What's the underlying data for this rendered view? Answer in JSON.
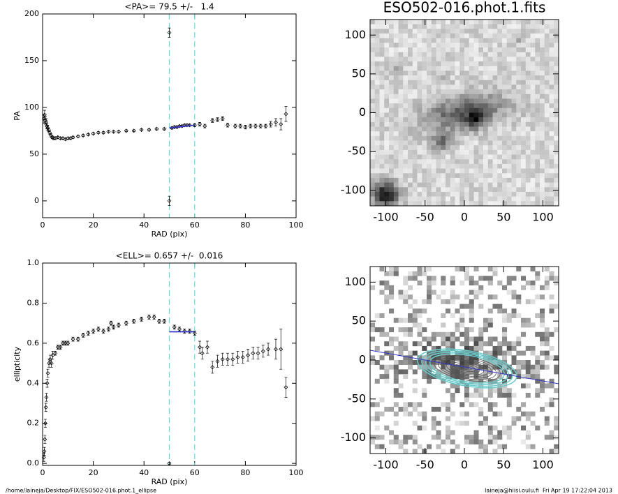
{
  "chart_data": [
    {
      "type": "scatter",
      "title": "<PA>= 79.5 +/-   1.4",
      "x_label": "RAD (pix)",
      "y_label": "PA",
      "xlim": [
        0,
        100
      ],
      "xticks": [
        0,
        20,
        40,
        60,
        80,
        100
      ],
      "ylim": [
        -18,
        200
      ],
      "yticks": [
        0,
        50,
        100,
        150,
        200
      ],
      "vlines": [
        50,
        60
      ],
      "vline_color": "#66dddd",
      "fit": {
        "color": "#3333cc",
        "x": [
          50,
          60
        ],
        "y": [
          78,
          81
        ]
      },
      "series": [
        {
          "color": "#000000",
          "x": [
            0.5,
            0.8,
            1.1,
            1.4,
            1.7,
            2,
            2.4,
            2.8,
            3.3,
            3.8,
            4.4,
            5,
            6,
            7,
            8,
            9,
            10,
            11,
            12,
            14,
            16,
            18,
            20,
            22,
            24,
            26,
            28,
            30,
            33,
            36,
            39,
            42,
            45,
            48,
            50,
            50,
            51,
            52,
            53,
            54,
            55,
            56,
            57,
            58,
            60,
            62,
            64,
            67,
            69,
            71,
            73,
            76,
            78,
            80,
            82,
            84,
            86,
            88,
            90,
            92,
            94,
            96
          ],
          "values": [
            88,
            92,
            86,
            84,
            80,
            78,
            76,
            73,
            70,
            68,
            67,
            67,
            68,
            67,
            67,
            66,
            67,
            67,
            68,
            69,
            70,
            71,
            72,
            73,
            73,
            74,
            74,
            74,
            75,
            75,
            76,
            76,
            77,
            77,
            180,
            0,
            78,
            79,
            79,
            80,
            80,
            81,
            81,
            81,
            81,
            82,
            80,
            86,
            87,
            88,
            81,
            80,
            80,
            79,
            80,
            80,
            80,
            80,
            82,
            84,
            82,
            93
          ],
          "errors": [
            5,
            5,
            4,
            4,
            3,
            3,
            2,
            2,
            2,
            1.5,
            1.5,
            1.5,
            1,
            1,
            1,
            1,
            1,
            1,
            1,
            1,
            1,
            1,
            1,
            1,
            1,
            1,
            1,
            1,
            1,
            1,
            1,
            1,
            1,
            1,
            5,
            5,
            1,
            1,
            1,
            1,
            1,
            1,
            1,
            1,
            1.5,
            2,
            2,
            2,
            2,
            2,
            2,
            2,
            2,
            2,
            2,
            2,
            2,
            2,
            3,
            4,
            6,
            8
          ]
        }
      ]
    },
    {
      "type": "scatter",
      "title": "<ELL>= 0.657 +/-  0.016",
      "x_label": "RAD (pix)",
      "y_label": "ellipticity",
      "xlim": [
        0,
        100
      ],
      "xticks": [
        0,
        20,
        40,
        60,
        80,
        100
      ],
      "ylim": [
        -0.01,
        1.0
      ],
      "yticks": [
        {
          "value": 0,
          "label": "0.0"
        },
        0.2,
        0.4,
        0.6,
        0.8,
        {
          "value": 1,
          "label": "1.0"
        }
      ],
      "vlines": [
        50,
        60
      ],
      "vline_color": "#66dddd",
      "fit": {
        "color": "#3333cc",
        "x": [
          50,
          60
        ],
        "y": [
          0.657,
          0.657
        ]
      },
      "series": [
        {
          "color": "#000000",
          "x": [
            0.5,
            0.7,
            0.9,
            1.1,
            1.3,
            1.5,
            1.8,
            2.1,
            2.5,
            3,
            3.5,
            4,
            5,
            6,
            7,
            8,
            9,
            10,
            12,
            14,
            16,
            18,
            20,
            22,
            24,
            26,
            27,
            28,
            30,
            33,
            36,
            39,
            42,
            44,
            46,
            48,
            50,
            52,
            54,
            56,
            58,
            60,
            62,
            63,
            65,
            67,
            69,
            71,
            73,
            75,
            77,
            79,
            81,
            83,
            85,
            87,
            89,
            92,
            94,
            96
          ],
          "values": [
            0.03,
            0.06,
            0.12,
            0.2,
            0.28,
            0.33,
            0.4,
            0.45,
            0.5,
            0.52,
            0.5,
            0.54,
            0.55,
            0.58,
            0.58,
            0.6,
            0.6,
            0.6,
            0.62,
            0.62,
            0.64,
            0.65,
            0.66,
            0.67,
            0.66,
            0.67,
            0.7,
            0.68,
            0.69,
            0.7,
            0.71,
            0.72,
            0.73,
            0.73,
            0.71,
            0.71,
            0,
            0.68,
            0.67,
            0.66,
            0.66,
            0.65,
            0.58,
            0.55,
            0.58,
            0.48,
            0.51,
            0.52,
            0.52,
            0.52,
            0.53,
            0.53,
            0.54,
            0.55,
            0.55,
            0.56,
            0.57,
            0.57,
            0.57,
            0.38
          ],
          "errors": [
            0.02,
            0.02,
            0.02,
            0.02,
            0.02,
            0.02,
            0.02,
            0.02,
            0.02,
            0.02,
            0.02,
            0.02,
            0.01,
            0.01,
            0.01,
            0.01,
            0.01,
            0.01,
            0.01,
            0.01,
            0.01,
            0.01,
            0.01,
            0.01,
            0.01,
            0.01,
            0.01,
            0.01,
            0.01,
            0.01,
            0.01,
            0.01,
            0.01,
            0.01,
            0.01,
            0.01,
            0.005,
            0.01,
            0.01,
            0.01,
            0.01,
            0.01,
            0.03,
            0.03,
            0.03,
            0.03,
            0.03,
            0.03,
            0.03,
            0.03,
            0.03,
            0.03,
            0.03,
            0.03,
            0.03,
            0.03,
            0.03,
            0.05,
            0.1,
            0.05
          ]
        }
      ]
    },
    {
      "type": "image",
      "title": "ESO502-016.phot.1.fits",
      "xlim": [
        -120,
        120
      ],
      "xticks": [
        -100,
        -50,
        0,
        50,
        100
      ],
      "ylim": [
        -120,
        120
      ],
      "yticks": [
        -100,
        -50,
        0,
        50,
        100
      ]
    },
    {
      "type": "image_model",
      "xlim": [
        -120,
        120
      ],
      "xticks": [
        -100,
        -50,
        0,
        50,
        100
      ],
      "ylim": [
        -120,
        120
      ],
      "yticks": [
        -100,
        -50,
        0,
        50,
        100
      ]
    }
  ],
  "footer_left": "/home/laineja/Desktop/FIX/ESO502-016.phot.1_ellipse",
  "footer_right": "laineja@hiisi.oulu.fi  Fri Apr 19 17:22:04 2013"
}
